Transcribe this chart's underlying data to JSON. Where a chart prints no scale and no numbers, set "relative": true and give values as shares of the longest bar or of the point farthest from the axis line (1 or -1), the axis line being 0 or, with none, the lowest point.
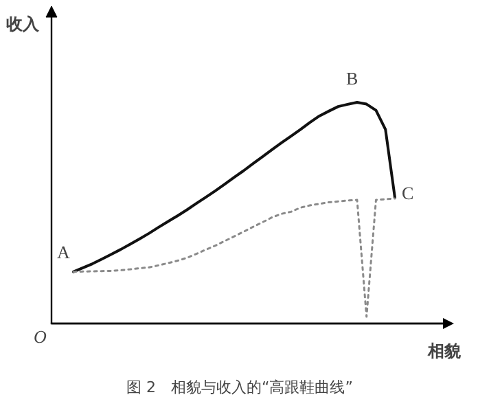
{
  "chart_data": {
    "type": "line",
    "relative": true,
    "title": "图 2　相貌与收入的“高跟鞋曲线”",
    "xlabel": "相貌",
    "ylabel": "收入",
    "tick_labels": false,
    "grid": false,
    "categories": [
      null,
      null,
      null,
      null,
      null,
      null,
      null,
      null,
      null,
      null,
      null,
      null,
      null,
      null,
      null,
      null,
      null,
      null,
      null,
      null,
      null,
      null,
      null,
      null,
      null,
      null,
      null,
      null,
      null,
      null,
      null,
      null,
      null,
      null,
      null
    ],
    "series": [
      {
        "color": "#111111",
        "line_style": "solid",
        "values": [
          0.234,
          0.252,
          0.27,
          0.291,
          0.313,
          0.335,
          0.359,
          0.383,
          0.408,
          0.435,
          0.461,
          0.487,
          0.514,
          0.543,
          0.571,
          0.6,
          0.63,
          0.661,
          0.691,
          0.723,
          0.754,
          0.786,
          0.817,
          0.847,
          0.877,
          0.909,
          0.938,
          0.96,
          0.981,
          0.991,
          1,
          0.992,
          0.964,
          0.878,
          0.569
        ]
      },
      {
        "color": "#8a8a8a",
        "line_style": "dotted",
        "values": [
          0.234,
          0.235,
          0.236,
          0.237,
          0.238,
          0.241,
          0.245,
          0.25,
          0.254,
          0.263,
          0.273,
          0.284,
          0.297,
          0.315,
          0.334,
          0.352,
          0.373,
          0.394,
          0.415,
          0.437,
          0.458,
          0.48,
          0.496,
          0.505,
          0.524,
          0.534,
          0.541,
          0.548,
          0.552,
          0.556,
          0.559,
          0.031,
          0.559,
          0.562,
          0.565
        ]
      }
    ],
    "annotations": [
      "A",
      "B",
      "C",
      "O"
    ]
  }
}
